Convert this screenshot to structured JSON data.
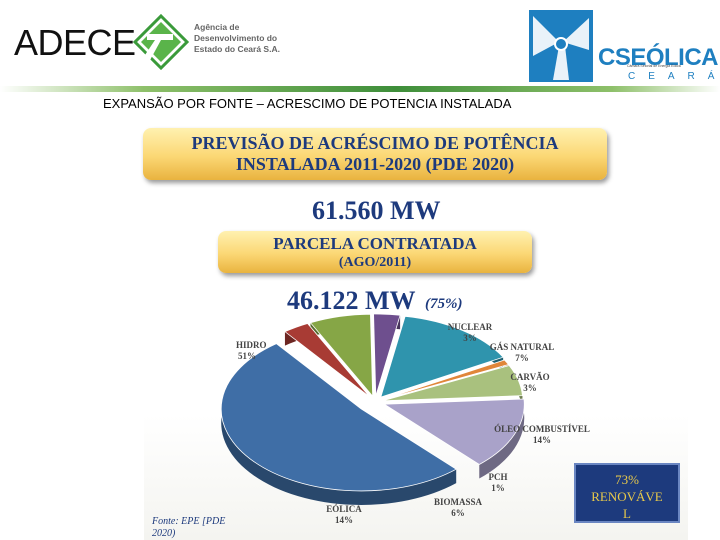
{
  "header": {
    "org_left": "ADECE",
    "org_left_desc": [
      "Agência de",
      "Desenvolvimento do",
      "Estado do Ceará S.A."
    ],
    "org_right": "CSEÓLICA",
    "org_right_state": "CEARÁ",
    "org_right_sub": "Câmara Setorial de Energia Eólica"
  },
  "slide_title": "EXPANSÃO POR FONTE – ACRESCIMO DE POTENCIA INSTALADA",
  "box_top": [
    "PREVISÃO DE ACRÉSCIMO DE POTÊNCIA",
    "INSTALADA 2011-2020 (PDE 2020)"
  ],
  "total_value": "61.560 MW",
  "box_mid": [
    "PARCELA CONTRATADA",
    "(AGO/2011)"
  ],
  "contracted_value": "46.122 MW",
  "contracted_pct": "(75%)",
  "chart_data": {
    "type": "pie",
    "slices": [
      {
        "name": "HIDRO",
        "value": 51,
        "label_pct": "51%",
        "color": "#3f6ea6"
      },
      {
        "name": "NUCLEAR",
        "value": 3,
        "label_pct": "3%",
        "color": "#a83b34"
      },
      {
        "name": "GÁS NATURAL",
        "value": 7,
        "label_pct": "7%",
        "color": "#86a646"
      },
      {
        "name": "CARVÃO",
        "value": 3,
        "label_pct": "3%",
        "color": "#6e4f8e"
      },
      {
        "name": "ÓLEO COMBUSTÍVEL",
        "value": 14,
        "label_pct": "14%",
        "color": "#2f94ad"
      },
      {
        "name": "PCH",
        "value": 1,
        "label_pct": "1%",
        "color": "#e0863a"
      },
      {
        "name": "BIOMASSA",
        "value": 6,
        "label_pct": "6%",
        "color": "#a9c17e"
      },
      {
        "name": "EÓLICA",
        "value": 14,
        "label_pct": "14%",
        "color": "#a9a2c9"
      }
    ]
  },
  "source_text": [
    "Fonte: EPE [PDE",
    "2020)"
  ],
  "renewable_text": [
    "73%",
    "RENOVÁVE",
    "L"
  ]
}
